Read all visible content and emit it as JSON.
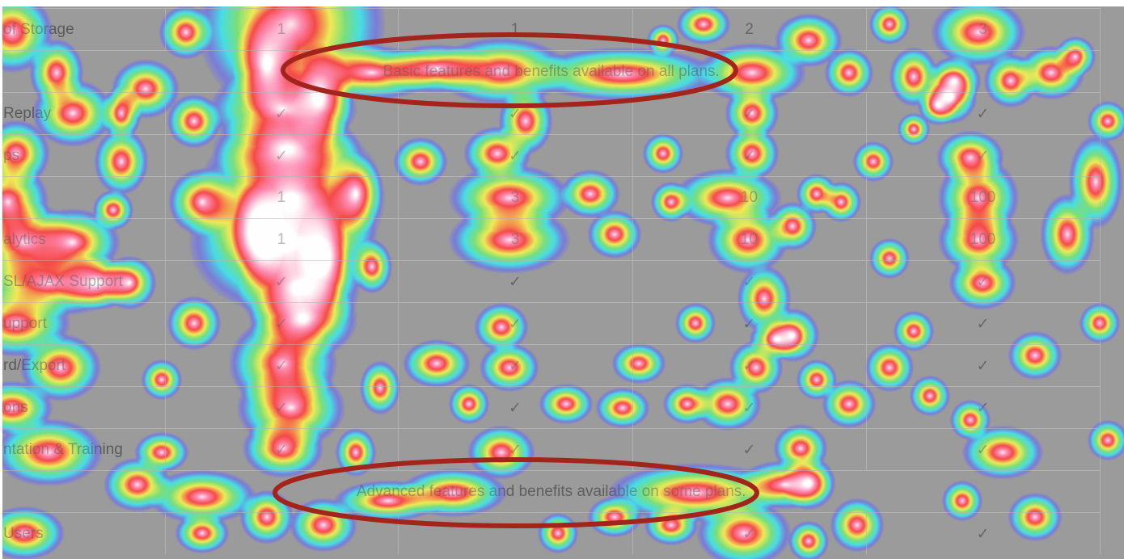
{
  "table": {
    "columns": [
      "",
      "",
      "",
      "",
      ""
    ],
    "rows": [
      {
        "type": "data",
        "feature": "of Storage",
        "values": [
          "1",
          "1",
          "2",
          "3"
        ]
      },
      {
        "type": "section",
        "label": "Basic features and benefits available on all plans."
      },
      {
        "type": "data",
        "feature": "Replay",
        "values": [
          "✓",
          "✓",
          "✓",
          "✓"
        ]
      },
      {
        "type": "data",
        "feature": "ps",
        "values": [
          "✓",
          "✓",
          "✓",
          "✓"
        ]
      },
      {
        "type": "data",
        "feature": "",
        "values": [
          "1",
          "3",
          "10",
          "100"
        ]
      },
      {
        "type": "data",
        "feature": "alytics",
        "values": [
          "1",
          "3",
          "10",
          "100"
        ]
      },
      {
        "type": "data",
        "feature": "SL/AJAX Support",
        "values": [
          "✓",
          "✓",
          "✓",
          "✓"
        ]
      },
      {
        "type": "data",
        "feature": "upport",
        "values": [
          "✓",
          "✓",
          "✓",
          "✓"
        ]
      },
      {
        "type": "data",
        "feature": "rd/Export",
        "values": [
          "✓",
          "✓",
          "✓",
          "✓"
        ]
      },
      {
        "type": "data",
        "feature": "ons",
        "values": [
          "✓",
          "✓",
          "✓",
          "✓"
        ]
      },
      {
        "type": "data",
        "feature": "ntation & Training",
        "values": [
          "✓",
          "✓",
          "✓",
          "✓"
        ]
      },
      {
        "type": "section",
        "label": "Advanced features and benefits available on some plans."
      },
      {
        "type": "data",
        "feature": "Users",
        "values": [
          "",
          "",
          "✓",
          "✓"
        ]
      }
    ]
  },
  "overlay": {
    "type": "click-heatmap",
    "annotation_color": "#a3241b",
    "highlighted_rows": [
      "Basic features and benefits available on all plans.",
      "Advanced features and benefits available on some plans."
    ]
  }
}
